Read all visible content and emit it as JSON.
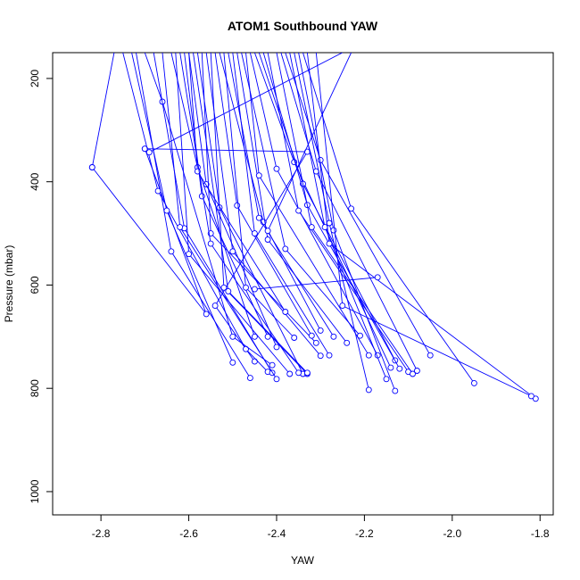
{
  "chart_data": {
    "type": "line",
    "title": "ATOM1 Southbound YAW",
    "xlabel": "YAW",
    "ylabel": "Pressure (mbar)",
    "xlim": [
      -2.91,
      -1.77
    ],
    "ylim": [
      1045,
      150
    ],
    "y_reversed": true,
    "xticks": [
      -2.8,
      -2.6,
      -2.4,
      -2.2,
      -2.0,
      -1.8
    ],
    "xtick_labels": [
      "-2.8",
      "-2.6",
      "-2.4",
      "-2.2",
      "-2.0",
      "-1.8"
    ],
    "yticks": [
      200,
      400,
      600,
      800,
      1000
    ],
    "ytick_labels": [
      "200",
      "400",
      "600",
      "800",
      "1000"
    ],
    "grid": false,
    "legend": "none",
    "color": "#0000ff",
    "series": [
      {
        "points": [
          [
            -2.77,
            150
          ],
          [
            -2.82,
            372
          ]
        ]
      },
      {
        "points": [
          [
            -2.82,
            372
          ],
          [
            -2.56,
            656
          ],
          [
            -2.7,
            336
          ]
        ]
      },
      {
        "points": [
          [
            -2.7,
            336
          ],
          [
            -2.33,
            342
          ],
          [
            -2.54,
            640
          ],
          [
            -2.45,
            748
          ]
        ]
      },
      {
        "points": [
          [
            -2.75,
            150
          ],
          [
            -2.67,
            418
          ],
          [
            -2.47,
            724
          ],
          [
            -2.42,
            768
          ]
        ]
      },
      {
        "points": [
          [
            -2.73,
            150
          ],
          [
            -2.65,
            456
          ],
          [
            -2.5,
            750
          ]
        ]
      },
      {
        "points": [
          [
            -2.72,
            150
          ],
          [
            -2.64,
            535
          ],
          [
            -2.46,
            780
          ]
        ]
      },
      {
        "points": [
          [
            -2.7,
            150
          ],
          [
            -2.66,
            245
          ],
          [
            -2.5,
            700
          ],
          [
            -2.41,
            755
          ]
        ]
      },
      {
        "points": [
          [
            -2.68,
            150
          ],
          [
            -2.61,
            490
          ],
          [
            -2.41,
            770
          ]
        ]
      },
      {
        "points": [
          [
            -2.66,
            150
          ],
          [
            -2.62,
            488
          ],
          [
            -2.4,
            782
          ]
        ]
      },
      {
        "points": [
          [
            -2.64,
            150
          ],
          [
            -2.58,
            372
          ],
          [
            -2.45,
            700
          ]
        ]
      },
      {
        "points": [
          [
            -2.63,
            150
          ],
          [
            -2.6,
            540
          ],
          [
            -2.37,
            772
          ]
        ]
      },
      {
        "points": [
          [
            -2.61,
            150
          ],
          [
            -2.57,
            428
          ],
          [
            -2.42,
            700
          ]
        ]
      },
      {
        "points": [
          [
            -2.69,
            343
          ],
          [
            -2.25,
            150
          ]
        ]
      },
      {
        "points": [
          [
            -2.6,
            150
          ],
          [
            -2.56,
            405
          ],
          [
            -2.4,
            720
          ]
        ]
      },
      {
        "points": [
          [
            -2.58,
            150
          ],
          [
            -2.53,
            450
          ],
          [
            -2.34,
            772
          ]
        ]
      },
      {
        "points": [
          [
            -2.57,
            150
          ],
          [
            -2.55,
            500
          ],
          [
            -2.31,
            712
          ]
        ]
      },
      {
        "points": [
          [
            -2.56,
            150
          ],
          [
            -2.5,
            535
          ],
          [
            -2.3,
            737
          ]
        ]
      },
      {
        "points": [
          [
            -2.55,
            150
          ],
          [
            -2.52,
            605
          ],
          [
            -2.33,
            772
          ]
        ]
      },
      {
        "points": [
          [
            -2.54,
            150
          ],
          [
            -2.49,
            446
          ],
          [
            -2.32,
            698
          ]
        ]
      },
      {
        "points": [
          [
            -2.53,
            150
          ],
          [
            -2.43,
            478
          ],
          [
            -2.3,
            688
          ]
        ]
      },
      {
        "points": [
          [
            -2.52,
            150
          ],
          [
            -2.47,
            605
          ],
          [
            -2.36,
            702
          ]
        ]
      },
      {
        "points": [
          [
            -2.51,
            150
          ],
          [
            -2.44,
            470
          ],
          [
            -2.27,
            700
          ]
        ]
      },
      {
        "points": [
          [
            -2.5,
            150
          ],
          [
            -2.45,
            500
          ],
          [
            -2.28,
            736
          ]
        ]
      },
      {
        "points": [
          [
            -2.49,
            150
          ],
          [
            -2.42,
            512
          ],
          [
            -2.24,
            712
          ]
        ]
      },
      {
        "points": [
          [
            -2.48,
            150
          ],
          [
            -2.38,
            530
          ],
          [
            -2.21,
            698
          ]
        ]
      },
      {
        "points": [
          [
            -2.47,
            150
          ],
          [
            -2.44,
            388
          ],
          [
            -2.19,
            736
          ]
        ]
      },
      {
        "points": [
          [
            -2.46,
            150
          ],
          [
            -2.4,
            375
          ],
          [
            -2.17,
            736
          ]
        ]
      },
      {
        "points": [
          [
            -2.45,
            150
          ],
          [
            -2.36,
            362
          ],
          [
            -2.14,
            760
          ]
        ]
      },
      {
        "points": [
          [
            -2.44,
            150
          ],
          [
            -2.34,
            404
          ],
          [
            -2.13,
            746
          ]
        ]
      },
      {
        "points": [
          [
            -2.43,
            150
          ],
          [
            -2.33,
            445
          ],
          [
            -2.12,
            762
          ]
        ]
      },
      {
        "points": [
          [
            -2.42,
            150
          ],
          [
            -2.35,
            456
          ],
          [
            -2.1,
            768
          ]
        ]
      },
      {
        "points": [
          [
            -2.4,
            150
          ],
          [
            -2.32,
            488
          ],
          [
            -2.09,
            772
          ]
        ]
      },
      {
        "points": [
          [
            -2.39,
            150
          ],
          [
            -2.31,
            380
          ],
          [
            -2.08,
            766
          ]
        ]
      },
      {
        "points": [
          [
            -2.38,
            150
          ],
          [
            -2.3,
            358
          ],
          [
            -2.05,
            736
          ]
        ]
      },
      {
        "points": [
          [
            -2.37,
            150
          ],
          [
            -2.29,
            488
          ],
          [
            -2.15,
            782
          ]
        ]
      },
      {
        "points": [
          [
            -2.36,
            150
          ],
          [
            -2.28,
            480
          ],
          [
            -2.19,
            803
          ]
        ]
      },
      {
        "points": [
          [
            -2.35,
            150
          ],
          [
            -2.27,
            494
          ],
          [
            -2.13,
            805
          ]
        ]
      },
      {
        "points": [
          [
            -2.34,
            150
          ],
          [
            -2.23,
            452
          ],
          [
            -1.95,
            790
          ]
        ]
      },
      {
        "points": [
          [
            -2.33,
            150
          ],
          [
            -2.28,
            520
          ],
          [
            -1.81,
            820
          ]
        ]
      },
      {
        "points": [
          [
            -2.31,
            150
          ],
          [
            -2.25,
            640
          ],
          [
            -1.82,
            815
          ]
        ]
      },
      {
        "points": [
          [
            -2.42,
            495
          ],
          [
            -2.23,
            150
          ]
        ]
      },
      {
        "points": [
          [
            -2.45,
            608
          ],
          [
            -2.17,
            585
          ]
        ]
      },
      {
        "points": [
          [
            -2.6,
            150
          ],
          [
            -2.58,
            380
          ],
          [
            -2.38,
            652
          ]
        ]
      },
      {
        "points": [
          [
            -2.62,
            150
          ],
          [
            -2.55,
            520
          ],
          [
            -2.35,
            770
          ]
        ]
      },
      {
        "points": [
          [
            -2.59,
            150
          ],
          [
            -2.51,
            612
          ],
          [
            -2.33,
            770
          ]
        ]
      }
    ]
  }
}
